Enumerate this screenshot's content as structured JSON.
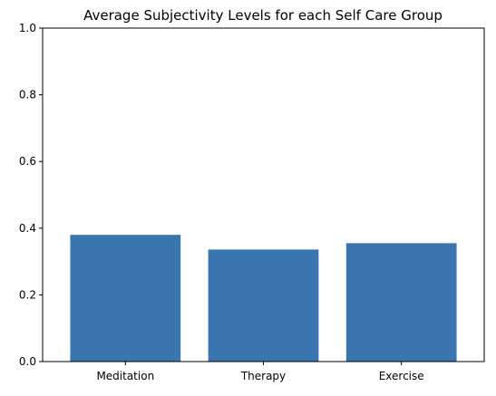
{
  "chart_data": {
    "type": "bar",
    "title": "Average Subjectivity Levels for each Self Care Group",
    "xlabel": "",
    "ylabel": "",
    "categories": [
      "Meditation",
      "Therapy",
      "Exercise"
    ],
    "values": [
      0.38,
      0.336,
      0.355
    ],
    "ylim": [
      0,
      1
    ],
    "yticks": [
      "0.0",
      "0.2",
      "0.4",
      "0.6",
      "0.8",
      "1.0"
    ],
    "grid": false,
    "bar_color": "#3a75b0"
  }
}
